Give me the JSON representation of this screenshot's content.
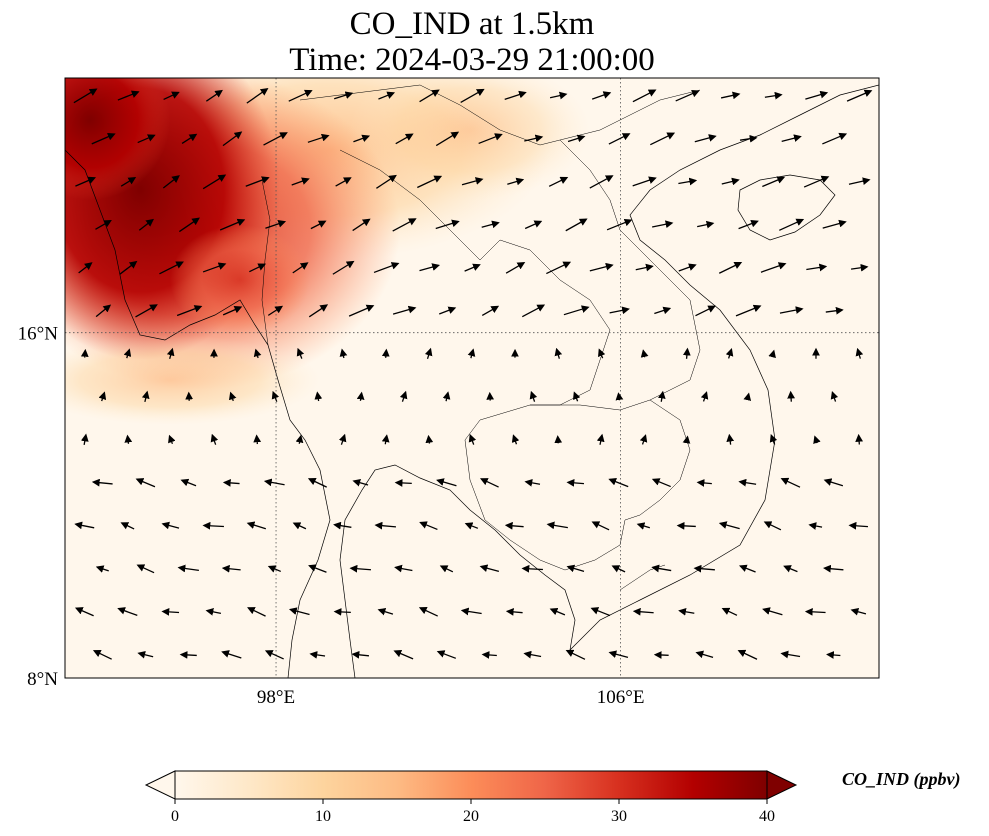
{
  "title": {
    "line1": "CO_IND at 1.5km",
    "line2": "Time: 2024-03-29 21:00:00"
  },
  "map": {
    "lon_range": [
      93.1,
      112
    ],
    "lat_range": [
      8,
      21.9
    ],
    "lon_ticks": [
      {
        "value": 98,
        "label": "98°E"
      },
      {
        "value": 106,
        "label": "106°E"
      }
    ],
    "lat_ticks": [
      {
        "value": 8,
        "label": "8°N"
      },
      {
        "value": 16,
        "label": "16°N"
      }
    ],
    "gridlines": true,
    "field": "CO_IND",
    "units": "ppbv",
    "wind_vectors": true
  },
  "colorbar": {
    "label": "CO_IND (ppbv)",
    "min": 0,
    "max": 40,
    "ticks": [
      {
        "value": 0,
        "label": "0"
      },
      {
        "value": 10,
        "label": "10"
      },
      {
        "value": 20,
        "label": "20"
      },
      {
        "value": 30,
        "label": "30"
      },
      {
        "value": 40,
        "label": "40"
      }
    ],
    "colormap": "OrRd",
    "colors": [
      "#fff7ec",
      "#fee8c8",
      "#fdd49e",
      "#fdbb84",
      "#fc8d59",
      "#ef6548",
      "#d7301f",
      "#b30000",
      "#7f0000"
    ],
    "extend": "both"
  }
}
